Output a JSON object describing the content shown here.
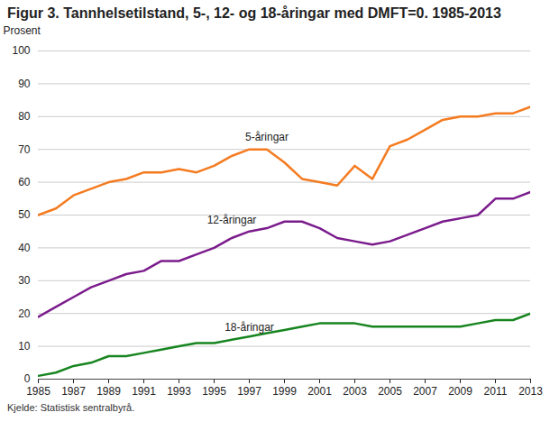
{
  "chart_data": {
    "type": "line",
    "title": "Figur 3. Tannhelsetilstand, 5-, 12- og 18-åringar med DMFT=0. 1985-2013",
    "y_label": "Prosent",
    "source": "Kjelde: Statistisk sentralbyrå.",
    "x": [
      1985,
      1986,
      1987,
      1988,
      1989,
      1990,
      1991,
      1992,
      1993,
      1994,
      1995,
      1996,
      1997,
      1998,
      1999,
      2000,
      2001,
      2002,
      2003,
      2004,
      2005,
      2006,
      2007,
      2008,
      2009,
      2010,
      2011,
      2012,
      2013
    ],
    "series": [
      {
        "name": "5-åringar",
        "color": "#f47b20",
        "values": [
          50,
          52,
          56,
          58,
          60,
          61,
          63,
          63,
          64,
          63,
          65,
          68,
          70,
          70,
          66,
          61,
          60,
          59,
          65,
          61,
          71,
          73,
          76,
          79,
          80,
          80,
          81,
          81,
          83
        ]
      },
      {
        "name": "12-åringar",
        "color": "#7b1c8c",
        "values": [
          19,
          22,
          25,
          28,
          30,
          32,
          33,
          36,
          36,
          38,
          40,
          43,
          45,
          46,
          48,
          48,
          46,
          43,
          42,
          41,
          42,
          44,
          46,
          48,
          49,
          50,
          55,
          55,
          57
        ]
      },
      {
        "name": "18-åringar",
        "color": "#17851f",
        "values": [
          1,
          2,
          4,
          5,
          7,
          7,
          8,
          9,
          10,
          11,
          11,
          12,
          13,
          14,
          15,
          16,
          17,
          17,
          17,
          16,
          16,
          16,
          16,
          16,
          16,
          17,
          18,
          18,
          20
        ]
      }
    ],
    "xlim": [
      1985,
      2013
    ],
    "xticks": [
      1985,
      1987,
      1989,
      1991,
      1993,
      1995,
      1997,
      1999,
      2001,
      2003,
      2005,
      2007,
      2009,
      2011,
      2013
    ],
    "ylim": [
      0,
      100
    ],
    "yticks": [
      0,
      10,
      20,
      30,
      40,
      50,
      60,
      70,
      80,
      90,
      100
    ],
    "grid": true
  }
}
